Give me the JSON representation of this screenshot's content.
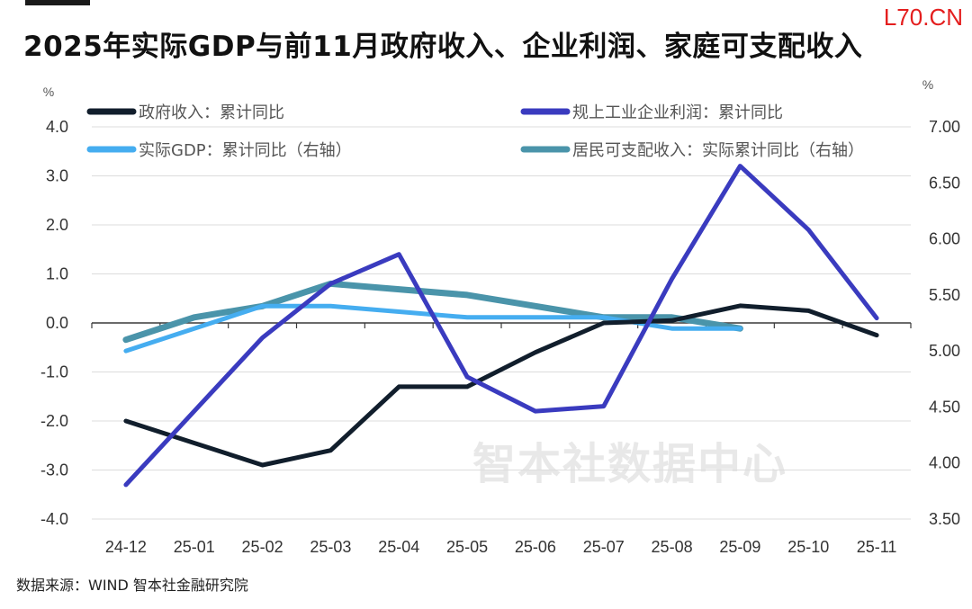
{
  "header": {
    "title": "2025年实际GDP与前11月政府收入、企业利润、家庭可支配收入",
    "brand": "L70.CN"
  },
  "footer": {
    "source": "数据来源：WIND 智本社金融研究院"
  },
  "watermark": "智本社数据中心",
  "colors": {
    "gov_revenue": "#111e2c",
    "industrial_profit": "#3a3bbf",
    "real_gdp": "#45adf0",
    "disposable_income": "#4a94aa",
    "axis": "#3a3a3a",
    "grid": "#dcdcdc"
  },
  "chart_data": {
    "type": "line",
    "title": "2025年实际GDP与前11月政府收入、企业利润、家庭可支配收入",
    "categories": [
      "24-12",
      "25-01",
      "25-02",
      "25-03",
      "25-04",
      "25-05",
      "25-06",
      "25-07",
      "25-08",
      "25-09",
      "25-10",
      "25-11"
    ],
    "y_left": {
      "unit": "%",
      "ylim": [
        -4.0,
        4.0
      ],
      "ticks": [
        "4.0",
        "3.0",
        "2.0",
        "1.0",
        "0.0",
        "-1.0",
        "-2.0",
        "-3.0",
        "-4.0"
      ]
    },
    "y_right": {
      "unit": "%",
      "ylim": [
        3.5,
        7.0
      ],
      "ticks": [
        "7.00",
        "6.50",
        "6.00",
        "5.50",
        "5.00",
        "4.50",
        "4.00",
        "3.50"
      ]
    },
    "grid": "horizontal",
    "legend_position": "top",
    "series": [
      {
        "name": "政府收入：累计同比",
        "axis": "left",
        "values": [
          -2.0,
          -2.45,
          -2.9,
          -2.6,
          -1.3,
          -1.3,
          -0.6,
          0.0,
          0.05,
          0.35,
          0.25,
          -0.25
        ]
      },
      {
        "name": "规上工业企业利润：累计同比",
        "axis": "left",
        "values": [
          -3.3,
          -1.8,
          -0.3,
          0.8,
          1.4,
          -1.1,
          -1.8,
          -1.7,
          0.9,
          3.2,
          1.9,
          0.1
        ]
      },
      {
        "name": "实际GDP：累计同比（右轴）",
        "axis": "right",
        "values": [
          5.0,
          5.2,
          5.4,
          5.4,
          5.35,
          5.3,
          5.3,
          5.3,
          5.2,
          5.2,
          null,
          null
        ]
      },
      {
        "name": "居民可支配收入：实际累计同比（右轴）",
        "axis": "right",
        "values": [
          5.1,
          5.3,
          5.4,
          5.6,
          5.55,
          5.5,
          5.4,
          5.3,
          5.3,
          5.2,
          null,
          null
        ]
      }
    ]
  }
}
